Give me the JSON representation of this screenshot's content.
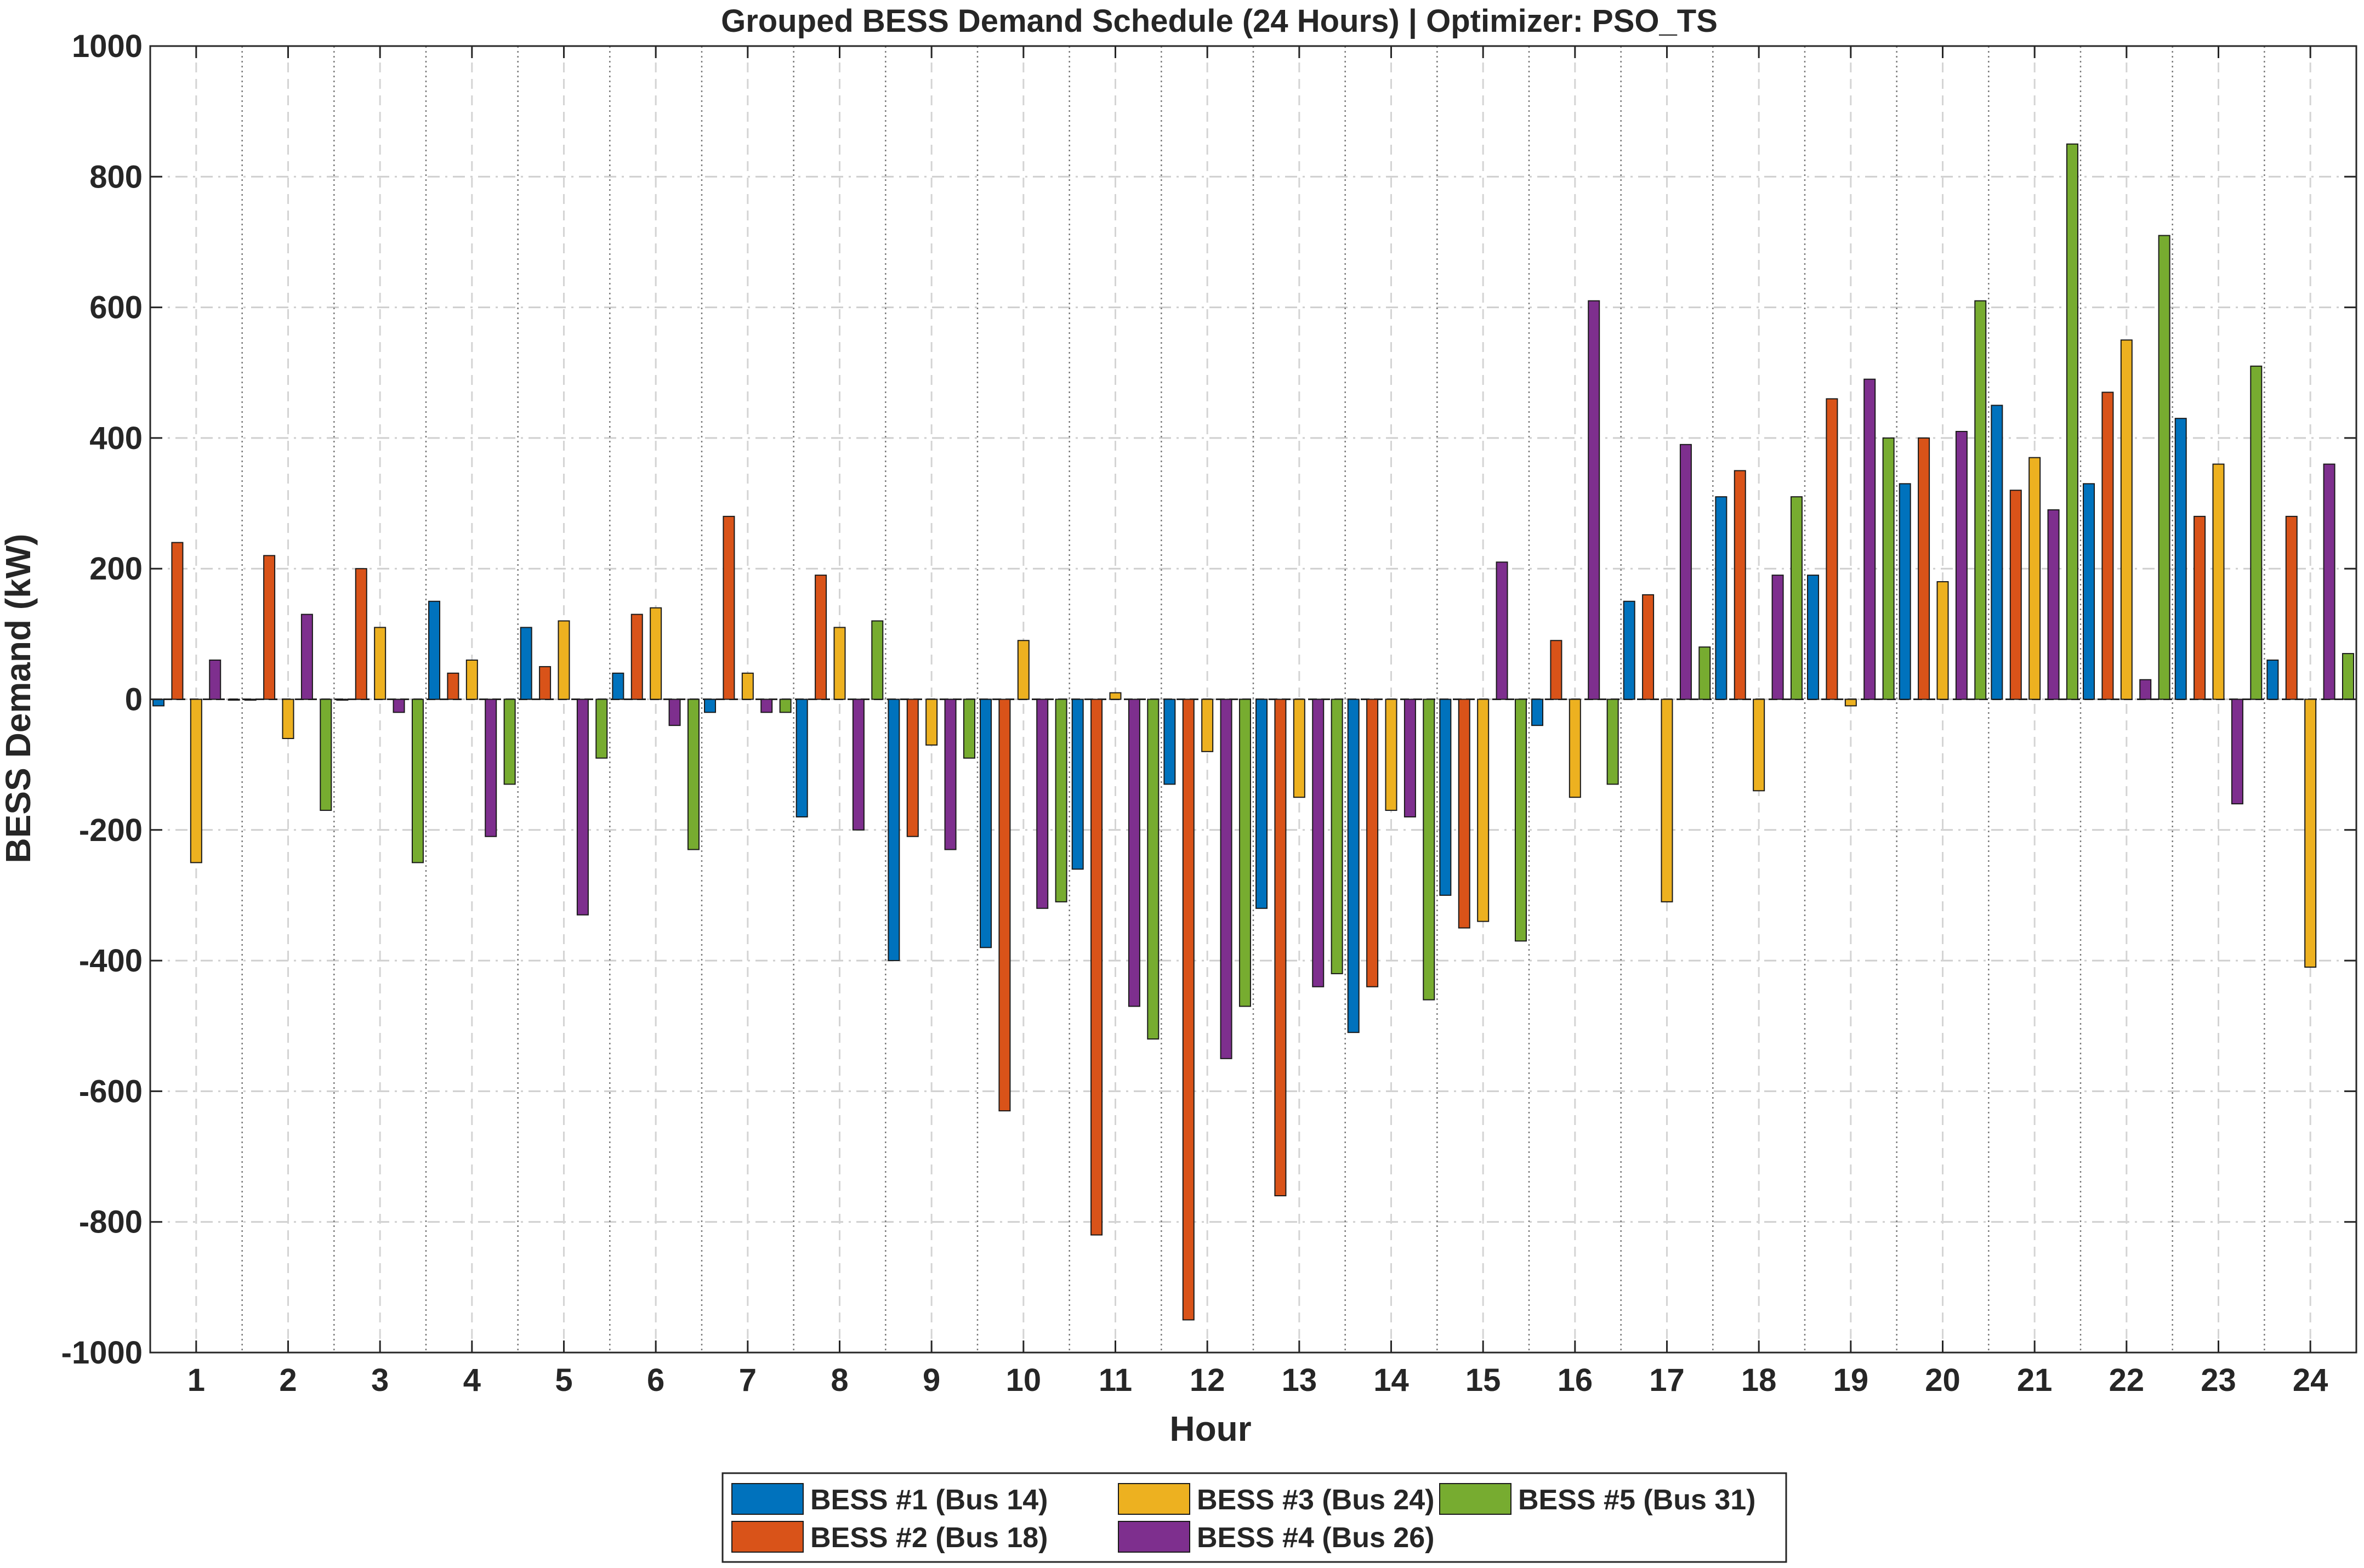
{
  "chart_data": {
    "type": "bar",
    "title": "Grouped BESS Demand Schedule (24 Hours) | Optimizer: PSO_TS",
    "xlabel": "Hour",
    "ylabel": "BESS Demand (kW)",
    "ylim": [
      -1000,
      1000
    ],
    "yticks": [
      "-1000",
      "-800",
      "-600",
      "-400",
      "-200",
      "0",
      "200",
      "400",
      "600",
      "800",
      "1000"
    ],
    "categories": [
      "1",
      "2",
      "3",
      "4",
      "5",
      "6",
      "7",
      "8",
      "9",
      "10",
      "11",
      "12",
      "13",
      "14",
      "15",
      "16",
      "17",
      "18",
      "19",
      "20",
      "21",
      "22",
      "23",
      "24"
    ],
    "grid": true,
    "legend_position": "bottom-center",
    "series": [
      {
        "name": "BESS #1 (Bus 14)",
        "color": "#0072BD",
        "values": [
          -10,
          0,
          0,
          150,
          110,
          40,
          -20,
          -180,
          -400,
          -380,
          -260,
          -130,
          -320,
          -510,
          -300,
          -40,
          150,
          310,
          190,
          330,
          450,
          330,
          430,
          60
        ]
      },
      {
        "name": "BESS #2 (Bus 18)",
        "color": "#D95319",
        "values": [
          240,
          220,
          200,
          40,
          50,
          130,
          280,
          190,
          -210,
          -630,
          -820,
          -950,
          -760,
          -440,
          -350,
          90,
          160,
          350,
          460,
          400,
          320,
          470,
          280,
          280
        ]
      },
      {
        "name": "BESS #3 (Bus 24)",
        "color": "#EDB120",
        "values": [
          -250,
          -60,
          110,
          60,
          120,
          140,
          40,
          110,
          -70,
          90,
          10,
          -80,
          -150,
          -170,
          -340,
          -150,
          -310,
          -140,
          -10,
          180,
          370,
          550,
          360,
          -410
        ]
      },
      {
        "name": "BESS #4 (Bus 26)",
        "color": "#7E2F8E",
        "values": [
          60,
          130,
          -20,
          -210,
          -330,
          -40,
          -20,
          -200,
          -230,
          -320,
          -470,
          -550,
          -440,
          -180,
          210,
          610,
          390,
          190,
          490,
          410,
          290,
          30,
          -160,
          360
        ]
      },
      {
        "name": "BESS #5 (Bus 31)",
        "color": "#77AC30",
        "values": [
          0,
          -170,
          -250,
          -130,
          -90,
          -230,
          -20,
          120,
          -90,
          -310,
          -520,
          -470,
          -420,
          -460,
          -370,
          -130,
          80,
          310,
          400,
          610,
          850,
          710,
          510,
          70
        ]
      }
    ]
  }
}
